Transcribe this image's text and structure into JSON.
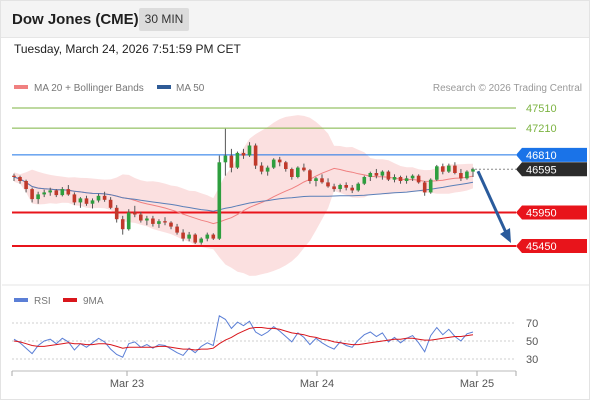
{
  "header": {
    "title": "Dow Jones (CME)",
    "timeframe": "30 MIN"
  },
  "datetime": "Tuesday, March 24, 2026 7:51:59 PM CET",
  "legend": {
    "ma20_label": "MA 20 + Bollinger Bands",
    "ma50_label": "MA 50",
    "ma20_color": "#f08080",
    "ma50_color": "#2e5b96"
  },
  "copyright": "Research © 2026 Trading Central",
  "rsi_legend": {
    "rsi_label": "RSI",
    "ma9_label": "9MA",
    "rsi_color": "#5b7fd6",
    "ma9_color": "#d9161c"
  },
  "chart_data": [
    {
      "type": "candlestick",
      "title": "Dow Jones (CME)",
      "x_tick_labels": [
        "Mar 23",
        "Mar 24",
        "Mar 25"
      ],
      "y_range": [
        45350,
        47650
      ],
      "levels": [
        {
          "value": 47510,
          "label": "47510",
          "style": "resistance-target",
          "color": "#7cb342"
        },
        {
          "value": 47210,
          "label": "47210",
          "style": "resistance-target",
          "color": "#7cb342"
        },
        {
          "value": 46810,
          "label": "46810",
          "style": "pivot",
          "color": "#1a73e8"
        },
        {
          "value": 46595,
          "label": "46595",
          "style": "last-price",
          "color": "#222222"
        },
        {
          "value": 45950,
          "label": "45950",
          "style": "support",
          "color": "#e8141b"
        },
        {
          "value": 45450,
          "label": "45450",
          "style": "support",
          "color": "#e8141b"
        }
      ],
      "last_price": 46595,
      "forecast_arrow": {
        "from": 46595,
        "to": 45450,
        "color": "#2a5b9c"
      },
      "candles": [
        [
          46500,
          46530,
          46420,
          46480
        ],
        [
          46480,
          46500,
          46380,
          46420
        ],
        [
          46420,
          46440,
          46250,
          46300
        ],
        [
          46300,
          46320,
          46100,
          46150
        ],
        [
          46150,
          46260,
          46080,
          46220
        ],
        [
          46220,
          46290,
          46180,
          46250
        ],
        [
          46250,
          46320,
          46200,
          46280
        ],
        [
          46280,
          46300,
          46180,
          46210
        ],
        [
          46210,
          46330,
          46190,
          46300
        ],
        [
          46300,
          46360,
          46200,
          46220
        ],
        [
          46220,
          46250,
          46060,
          46100
        ],
        [
          46100,
          46180,
          46020,
          46160
        ],
        [
          46160,
          46200,
          46050,
          46080
        ],
        [
          46080,
          46160,
          46010,
          46130
        ],
        [
          46130,
          46230,
          46100,
          46200
        ],
        [
          46200,
          46260,
          46110,
          46140
        ],
        [
          46140,
          46180,
          46000,
          46020
        ],
        [
          46020,
          46060,
          45800,
          45850
        ],
        [
          45850,
          45900,
          45620,
          45700
        ],
        [
          45700,
          46000,
          45680,
          45950
        ],
        [
          45950,
          46050,
          45880,
          45920
        ],
        [
          45920,
          45960,
          45800,
          45830
        ],
        [
          45830,
          45900,
          45760,
          45860
        ],
        [
          45860,
          45900,
          45740,
          45780
        ],
        [
          45780,
          45850,
          45720,
          45820
        ],
        [
          45820,
          45880,
          45760,
          45800
        ],
        [
          45800,
          45820,
          45700,
          45740
        ],
        [
          45740,
          45780,
          45620,
          45650
        ],
        [
          45650,
          45700,
          45520,
          45560
        ],
        [
          45560,
          45660,
          45520,
          45620
        ],
        [
          45620,
          45640,
          45480,
          45500
        ],
        [
          45500,
          45580,
          45470,
          45560
        ],
        [
          45560,
          45650,
          45520,
          45620
        ],
        [
          45620,
          45640,
          45540,
          45560
        ],
        [
          45560,
          46800,
          45540,
          46700
        ],
        [
          46700,
          47200,
          46500,
          46800
        ],
        [
          46800,
          46900,
          46550,
          46620
        ],
        [
          46620,
          46860,
          46600,
          46840
        ],
        [
          46840,
          46900,
          46750,
          46800
        ],
        [
          46800,
          47000,
          46780,
          46950
        ],
        [
          46950,
          46980,
          46600,
          46650
        ],
        [
          46650,
          46700,
          46520,
          46560
        ],
        [
          46560,
          46650,
          46500,
          46620
        ],
        [
          46620,
          46760,
          46600,
          46740
        ],
        [
          46740,
          46780,
          46640,
          46700
        ],
        [
          46700,
          46720,
          46560,
          46600
        ],
        [
          46600,
          46620,
          46440,
          46480
        ],
        [
          46480,
          46640,
          46460,
          46620
        ],
        [
          46620,
          46680,
          46560,
          46580
        ],
        [
          46580,
          46600,
          46380,
          46420
        ],
        [
          46420,
          46480,
          46340,
          46460
        ],
        [
          46460,
          46520,
          46380,
          46400
        ],
        [
          46400,
          46460,
          46320,
          46340
        ],
        [
          46340,
          46380,
          46260,
          46300
        ],
        [
          46300,
          46380,
          46260,
          46360
        ],
        [
          46360,
          46400,
          46280,
          46320
        ],
        [
          46320,
          46360,
          46240,
          46280
        ],
        [
          46280,
          46400,
          46260,
          46380
        ],
        [
          46380,
          46500,
          46360,
          46480
        ],
        [
          46480,
          46560,
          46420,
          46540
        ],
        [
          46540,
          46600,
          46460,
          46500
        ],
        [
          46500,
          46580,
          46440,
          46560
        ],
        [
          46560,
          46580,
          46420,
          46440
        ],
        [
          46440,
          46520,
          46400,
          46480
        ],
        [
          46480,
          46500,
          46380,
          46420
        ],
        [
          46420,
          46500,
          46380,
          46460
        ],
        [
          46460,
          46520,
          46420,
          46500
        ],
        [
          46500,
          46520,
          46380,
          46400
        ],
        [
          46400,
          46420,
          46200,
          46250
        ],
        [
          46250,
          46460,
          46230,
          46440
        ],
        [
          46440,
          46660,
          46420,
          46640
        ],
        [
          46640,
          46680,
          46520,
          46560
        ],
        [
          46560,
          46680,
          46540,
          46650
        ],
        [
          46650,
          46700,
          46520,
          46540
        ],
        [
          46540,
          46600,
          46420,
          46460
        ],
        [
          46460,
          46580,
          46440,
          46560
        ],
        [
          46560,
          46620,
          46480,
          46595
        ]
      ]
    },
    {
      "type": "line",
      "title": "RSI",
      "y_ticks": [
        70,
        50,
        30
      ],
      "y_range": [
        20,
        80
      ],
      "series": [
        {
          "name": "RSI",
          "values": [
            52,
            48,
            42,
            36,
            45,
            50,
            52,
            47,
            53,
            49,
            40,
            47,
            43,
            48,
            53,
            49,
            41,
            35,
            32,
            47,
            49,
            43,
            46,
            42,
            46,
            45,
            41,
            37,
            34,
            42,
            37,
            44,
            48,
            45,
            78,
            74,
            64,
            71,
            67,
            72,
            60,
            56,
            60,
            66,
            61,
            55,
            49,
            59,
            54,
            46,
            53,
            48,
            44,
            41,
            49,
            45,
            43,
            51,
            57,
            60,
            55,
            59,
            49,
            54,
            48,
            53,
            56,
            48,
            38,
            56,
            65,
            57,
            63,
            55,
            50,
            58,
            60
          ]
        },
        {
          "name": "9MA",
          "values": [
            50,
            49,
            47,
            45,
            44,
            44,
            45,
            46,
            47,
            48,
            47,
            47,
            46,
            46,
            47,
            47,
            46,
            44,
            42,
            43,
            43,
            43,
            43,
            43,
            44,
            44,
            43,
            42,
            41,
            41,
            40,
            41,
            41,
            42,
            47,
            51,
            54,
            58,
            61,
            64,
            65,
            65,
            64,
            64,
            63,
            61,
            59,
            58,
            57,
            55,
            54,
            52,
            51,
            49,
            48,
            47,
            46,
            46,
            47,
            48,
            49,
            50,
            51,
            52,
            52,
            53,
            53,
            52,
            51,
            51,
            52,
            53,
            54,
            55,
            55,
            56,
            57
          ]
        }
      ]
    }
  ]
}
